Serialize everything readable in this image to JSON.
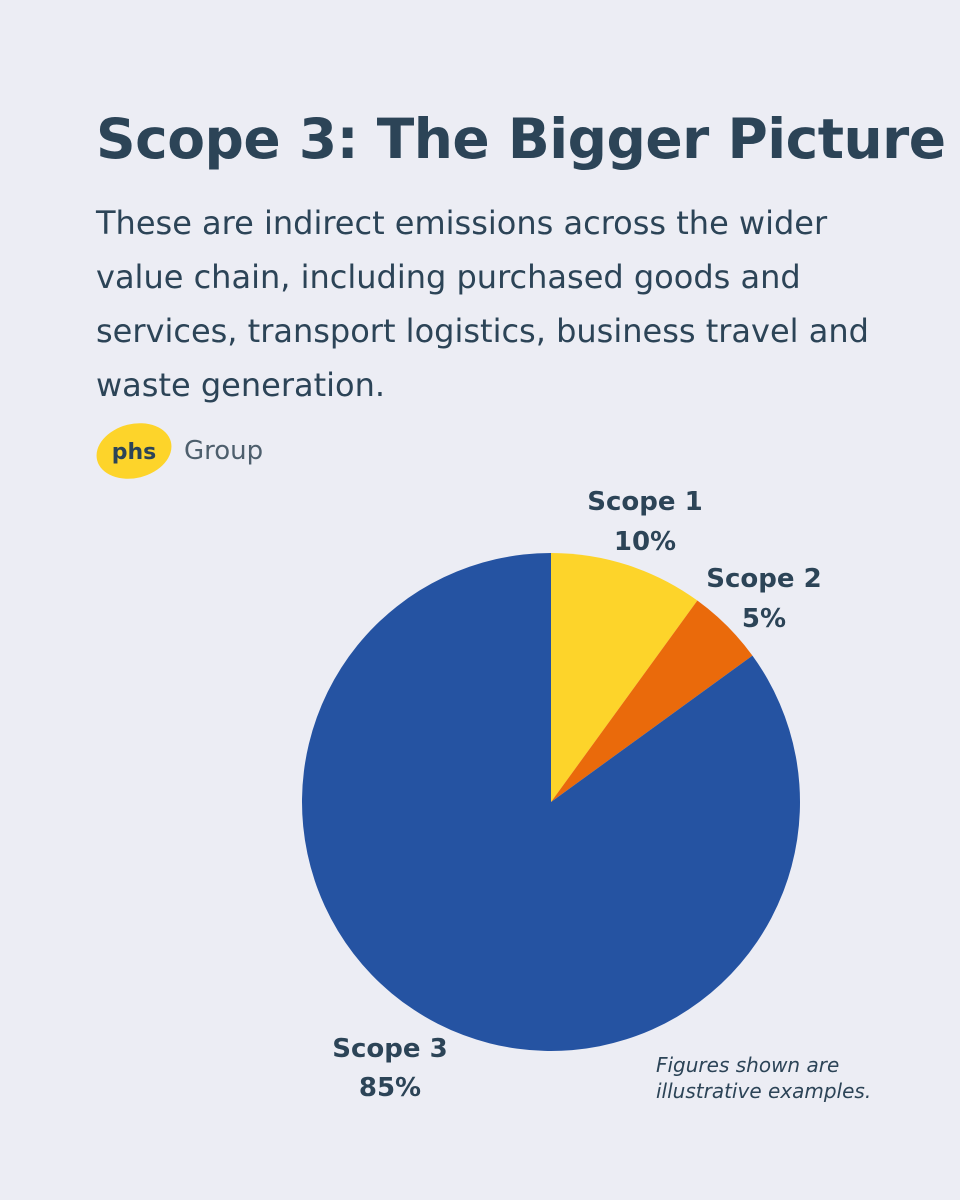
{
  "header": {
    "title": "Scope 3: The Bigger Picture",
    "subtitle": "These are indirect emissions across the wider value chain, including purchased goods and services, transport logistics, business travel and waste generation."
  },
  "brand": {
    "logo_text": "phs",
    "name": "Group",
    "logo_color": "#fdd42a"
  },
  "chart_data": {
    "type": "pie",
    "categories": [
      "Scope 1",
      "Scope 2",
      "Scope 3"
    ],
    "values": [
      10,
      5,
      85
    ],
    "value_labels": [
      "10%",
      "5%",
      "85%"
    ],
    "colors": [
      "#fdd42a",
      "#ea6a0b",
      "#2553a2"
    ],
    "start": "12 o'clock",
    "direction": "clockwise"
  },
  "footnote": "Figures shown are illustrative examples."
}
